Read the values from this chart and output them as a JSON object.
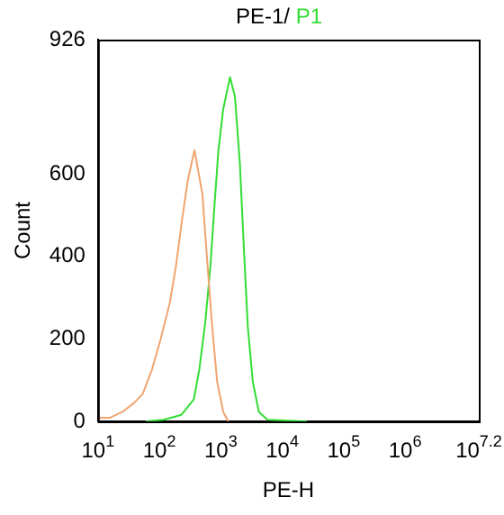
{
  "chart_data": {
    "type": "line",
    "title": "PE-1/",
    "xlabel": "PE-H",
    "ylabel": "Count",
    "log": "x",
    "grid": false,
    "legend": false,
    "marker": "none",
    "xlim": [
      10,
      15848932
    ],
    "xticks": [
      {
        "value": 10,
        "label": "10$^{1}$"
      },
      {
        "value": 100,
        "label": "10$^{2}$"
      },
      {
        "value": 1000,
        "label": "10$^{3}$"
      },
      {
        "value": 10000,
        "label": "10$^{4}$"
      },
      {
        "value": 100000,
        "label": "10$^{5}$"
      },
      {
        "value": 1000000,
        "label": "10$^{6}$"
      },
      {
        "value": 15848932,
        "label": "10$^{7.2}$"
      }
    ],
    "ylim": [
      0,
      926
    ],
    "yticks": [
      0,
      200,
      400,
      600,
      926
    ],
    "series": [
      {
        "color": "#f0a470",
        "x": [
          10.2,
          15.8,
          25.1,
          38.9,
          53.7,
          75.9,
          105,
          148,
          186,
          229,
          288,
          372,
          501,
          589,
          724,
          871,
          1096,
          1318
        ],
        "values": [
          9,
          9,
          23,
          45,
          67,
          126,
          200,
          288,
          376,
          479,
          582,
          658,
          552,
          406,
          229,
          97,
          23,
          0
        ]
      },
      {
        "name": "P1",
        "color": "#33dd33",
        "x": [
          60.3,
          117,
          229,
          363,
          447,
          562,
          676,
          776,
          912,
          1096,
          1413,
          1698,
          2042,
          2399,
          2754,
          3311,
          4169,
          5754,
          25119
        ],
        "values": [
          0,
          4,
          16,
          53,
          126,
          244,
          376,
          508,
          656,
          758,
          835,
          788,
          626,
          406,
          229,
          97,
          23,
          4,
          0
        ]
      }
    ]
  }
}
